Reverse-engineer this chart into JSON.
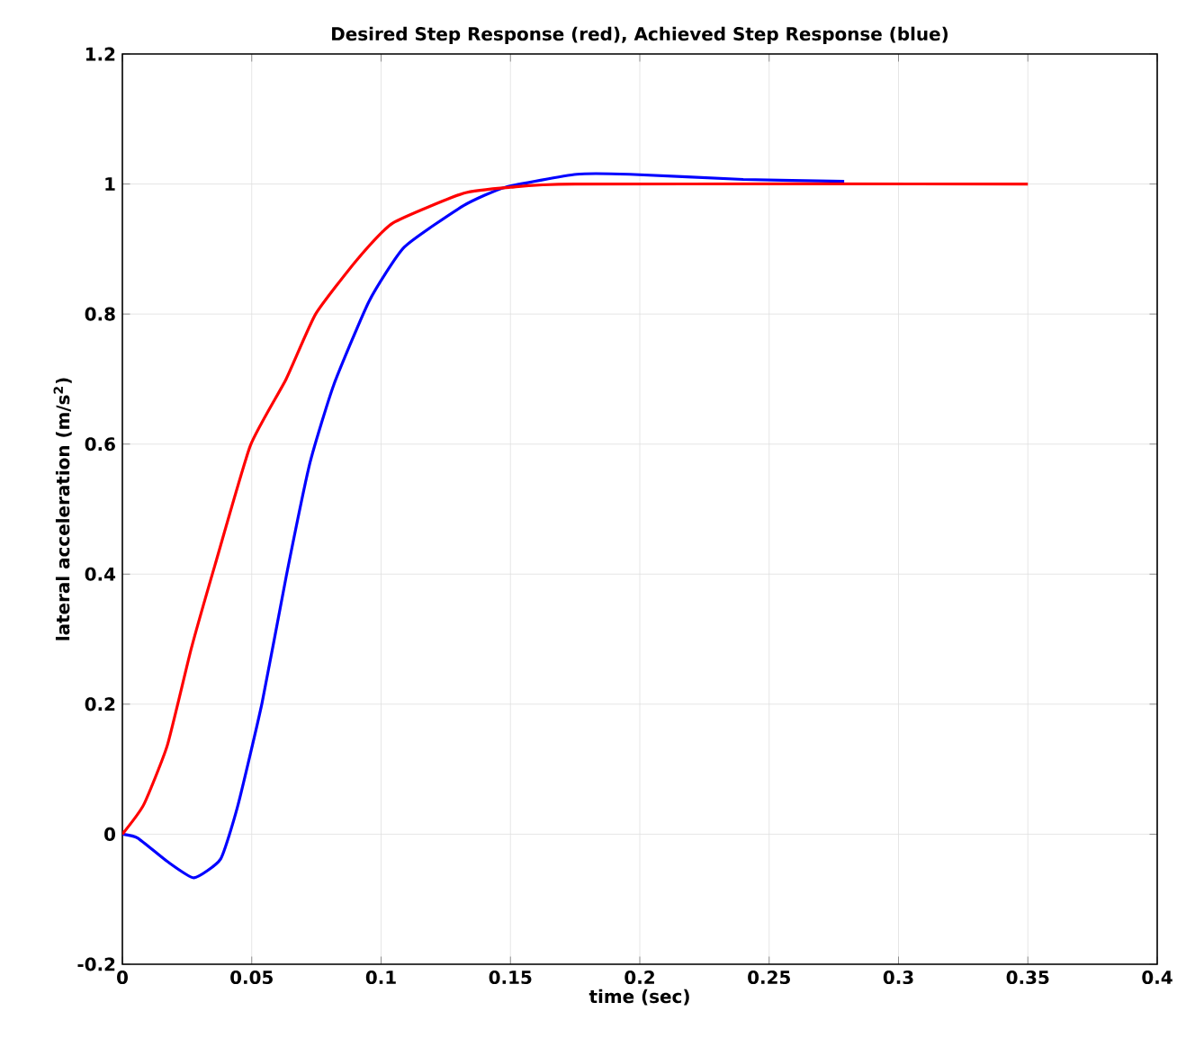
{
  "chart_data": {
    "type": "line",
    "title": "Desired Step Response (red), Achieved Step Response (blue)",
    "xlabel": "time (sec)",
    "ylabel": "lateral acceleration (m/s$^{2}$)",
    "xlim": [
      0,
      0.4
    ],
    "ylim": [
      -0.2,
      1.2
    ],
    "xticks": [
      0,
      0.05,
      0.1,
      0.15,
      0.2,
      0.25,
      0.3,
      0.35,
      0.4
    ],
    "yticks": [
      -0.2,
      0,
      0.2,
      0.4,
      0.6,
      0.8,
      1,
      1.2
    ],
    "grid": true,
    "series": [
      {
        "color": "#0000ff",
        "x": [
          0,
          0.006,
          0.0174,
          0.0277,
          0.038,
          0.0447,
          0.054,
          0.0633,
          0.0725,
          0.0817,
          0.0954,
          0.109,
          0.132,
          0.148,
          0.1756,
          0.196,
          0.24,
          0.279
        ],
        "values": [
          0,
          -0.006,
          -0.042,
          -0.067,
          -0.038,
          0.045,
          0.202,
          0.396,
          0.571,
          0.691,
          0.82,
          0.903,
          0.967,
          0.995,
          1.015,
          1.015,
          1.007,
          1.004
        ]
      },
      {
        "color": "#ff0000",
        "x": [
          0,
          0.0082,
          0.0174,
          0.0266,
          0.0358,
          0.0495,
          0.0633,
          0.0747,
          0.0908,
          0.1046,
          0.132,
          0.15,
          0.175,
          0.35
        ],
        "values": [
          0,
          0.045,
          0.137,
          0.285,
          0.414,
          0.598,
          0.7,
          0.8,
          0.884,
          0.94,
          0.986,
          0.995,
          1.0,
          1.0
        ]
      }
    ]
  }
}
